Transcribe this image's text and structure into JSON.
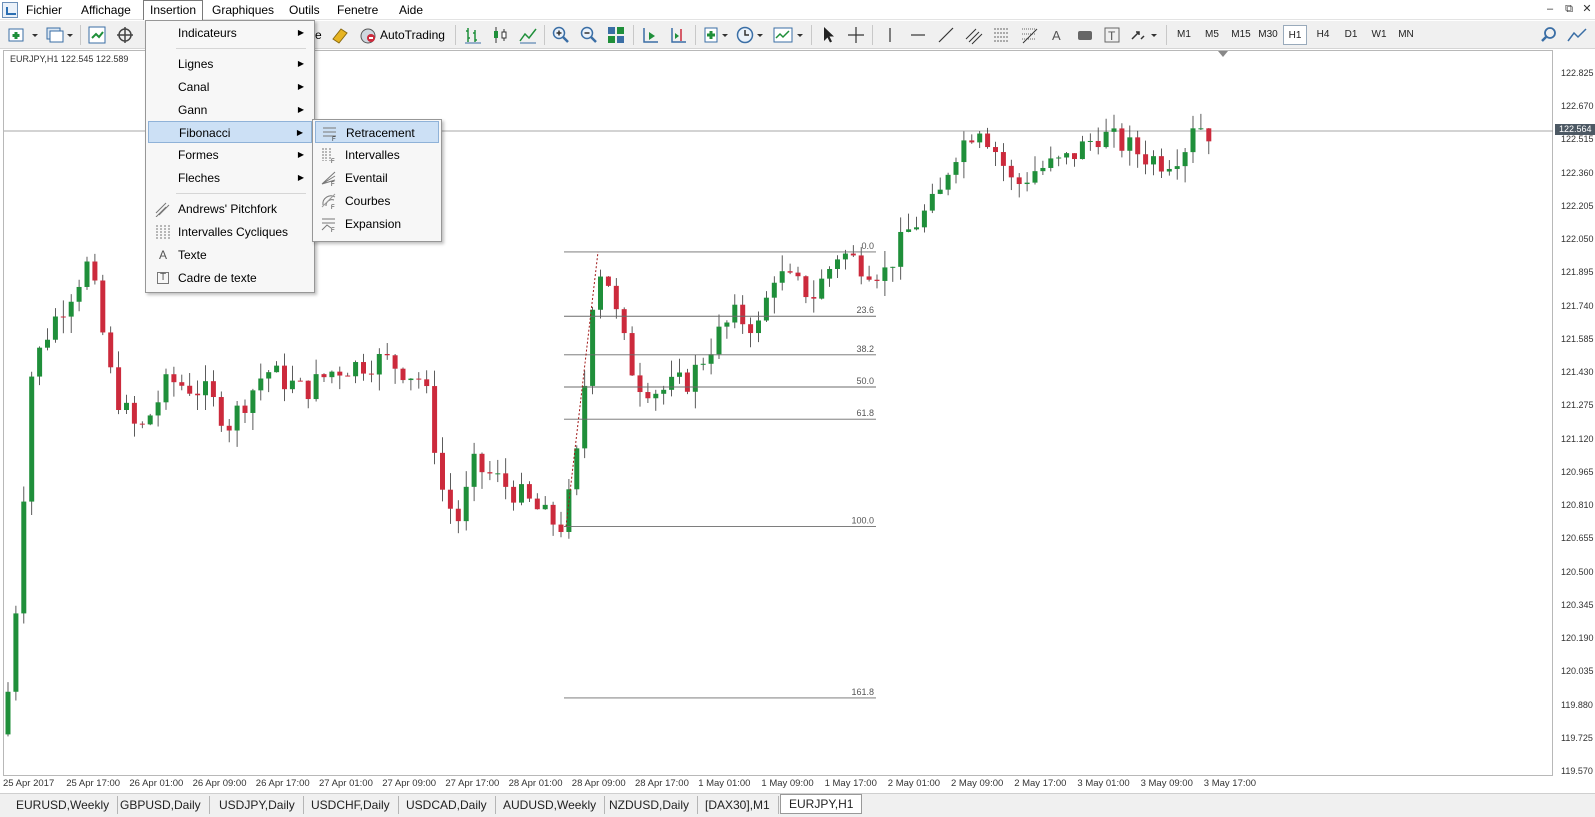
{
  "menubar": {
    "items": [
      "Fichier",
      "Affichage",
      "Insertion",
      "Graphiques",
      "Outils",
      "Fenetre",
      "Aide"
    ],
    "open_item": "Insertion"
  },
  "toolbar": {
    "partial_label": "re",
    "autotrading_label": "AutoTrading",
    "timeframes": [
      "M1",
      "M5",
      "M15",
      "M30",
      "H1",
      "H4",
      "D1",
      "W1",
      "MN"
    ],
    "active_timeframe": "H1"
  },
  "chart": {
    "title": "EURJPY,H1  122.545 122.589",
    "symbol": "EURJPY",
    "current_price": "122.564",
    "price_labels": [
      "122.825",
      "122.670",
      "122.515",
      "122.360",
      "122.205",
      "122.050",
      "121.895",
      "121.740",
      "121.585",
      "121.430",
      "121.275",
      "121.120",
      "120.965",
      "120.810",
      "120.655",
      "120.500",
      "120.345",
      "120.190",
      "120.035",
      "119.880",
      "119.725",
      "119.570"
    ],
    "time_labels": [
      "25 Apr 2017",
      "25 Apr 17:00",
      "26 Apr 01:00",
      "26 Apr 09:00",
      "26 Apr 17:00",
      "27 Apr 01:00",
      "27 Apr 09:00",
      "27 Apr 17:00",
      "28 Apr 01:00",
      "28 Apr 09:00",
      "28 Apr 17:00",
      "1 May 01:00",
      "1 May 09:00",
      "1 May 17:00",
      "2 May 01:00",
      "2 May 09:00",
      "2 May 17:00",
      "3 May 01:00",
      "3 May 09:00",
      "3 May 17:00"
    ],
    "fib_levels": [
      "0.0",
      "23.6",
      "38.2",
      "50.0",
      "61.8",
      "100.0",
      "161.8"
    ],
    "colors": {
      "bull": "#1f8f3a",
      "bear": "#cc2a3c",
      "fib": "#6b6b6b",
      "current": "#4d5964"
    }
  },
  "insertion_menu": {
    "items": [
      {
        "label": "Indicateurs",
        "submenu": true
      },
      {
        "label": "Lignes",
        "submenu": true
      },
      {
        "label": "Canal",
        "submenu": true
      },
      {
        "label": "Gann",
        "submenu": true
      },
      {
        "label": "Fibonacci",
        "submenu": true,
        "highlighted": true
      },
      {
        "label": "Formes",
        "submenu": true
      },
      {
        "label": "Fleches",
        "submenu": true
      },
      {
        "label": "Andrews' Pitchfork",
        "icon": "pitchfork-icon"
      },
      {
        "label": "Intervalles Cycliques",
        "icon": "cycle-lines-icon"
      },
      {
        "label": "Texte",
        "icon": "text-icon",
        "glyph": "A"
      },
      {
        "label": "Cadre de texte",
        "icon": "text-label-icon",
        "glyph": "T"
      }
    ]
  },
  "fibonacci_menu": {
    "items": [
      {
        "label": "Retracement",
        "icon": "fib-retracement-icon",
        "highlighted": true
      },
      {
        "label": "Intervalles",
        "icon": "fib-timezones-icon"
      },
      {
        "label": "Eventail",
        "icon": "fib-fan-icon"
      },
      {
        "label": "Courbes",
        "icon": "fib-arcs-icon"
      },
      {
        "label": "Expansion",
        "icon": "fib-expansion-icon"
      }
    ]
  },
  "tabs": {
    "items": [
      "EURUSD,Weekly",
      "GBPUSD,Daily",
      "USDJPY,Daily",
      "USDCHF,Daily",
      "USDCAD,Daily",
      "AUDUSD,Weekly",
      "NZDUSD,Daily",
      "[DAX30],M1",
      "EURJPY,H1"
    ],
    "active": "EURJPY,H1"
  }
}
